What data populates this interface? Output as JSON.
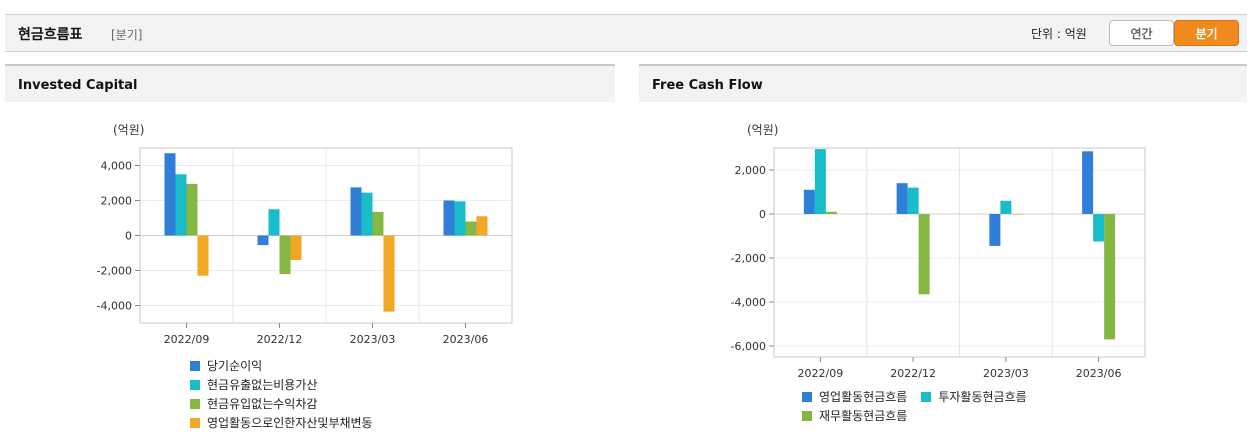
{
  "header": {
    "title": "현금흐름표",
    "subtitle": "[분기]",
    "unit_label": "단위 : 억원",
    "tabs": [
      "연간",
      "분기"
    ]
  },
  "colors": {
    "blue": "#2f7fd9",
    "teal": "#19bdc9",
    "green": "#85b843",
    "orange": "#f3a825",
    "grid": "#d9d9d9"
  },
  "chart_data": [
    {
      "type": "bar",
      "title": "Invested Capital",
      "ylabel": "(억원)",
      "categories": [
        "2022/09",
        "2022/12",
        "2023/03",
        "2023/06"
      ],
      "ylim": [
        -5000,
        5000
      ],
      "yticks": [
        4000,
        2000,
        0,
        -2000,
        -4000
      ],
      "ytick_labels": [
        "4,000",
        "2,000",
        "0",
        "-2,000",
        "-4,000"
      ],
      "series": [
        {
          "name": "당기순이익",
          "color": "#2f7fd9",
          "values": [
            4700,
            -550,
            2750,
            2000
          ]
        },
        {
          "name": "현금유출없는비용가산",
          "color": "#19bdc9",
          "values": [
            3500,
            1500,
            2450,
            1950
          ]
        },
        {
          "name": "현금유입없는수익차감",
          "color": "#85b843",
          "values": [
            2950,
            -2200,
            1350,
            800
          ]
        },
        {
          "name": "영업활동으로인한자산및부채변동",
          "color": "#f3a825",
          "values": [
            -2300,
            -1400,
            -4350,
            1100
          ]
        }
      ]
    },
    {
      "type": "bar",
      "title": "Free Cash Flow",
      "ylabel": "(억원)",
      "categories": [
        "2022/09",
        "2022/12",
        "2023/03",
        "2023/06"
      ],
      "ylim": [
        -6500,
        3000
      ],
      "yticks": [
        2000,
        0,
        -2000,
        -4000,
        -6000
      ],
      "ytick_labels": [
        "2,000",
        "0",
        "-2,000",
        "-4,000",
        "-6,000"
      ],
      "series": [
        {
          "name": "영업활동현금흐름",
          "color": "#2f7fd9",
          "values": [
            1100,
            1400,
            -1450,
            2850
          ]
        },
        {
          "name": "투자활동현금흐름",
          "color": "#19bdc9",
          "values": [
            2950,
            1200,
            600,
            -1250
          ]
        },
        {
          "name": "재무활동현금흐름",
          "color": "#85b843",
          "values": [
            100,
            -3650,
            0,
            -5700
          ]
        }
      ]
    }
  ]
}
